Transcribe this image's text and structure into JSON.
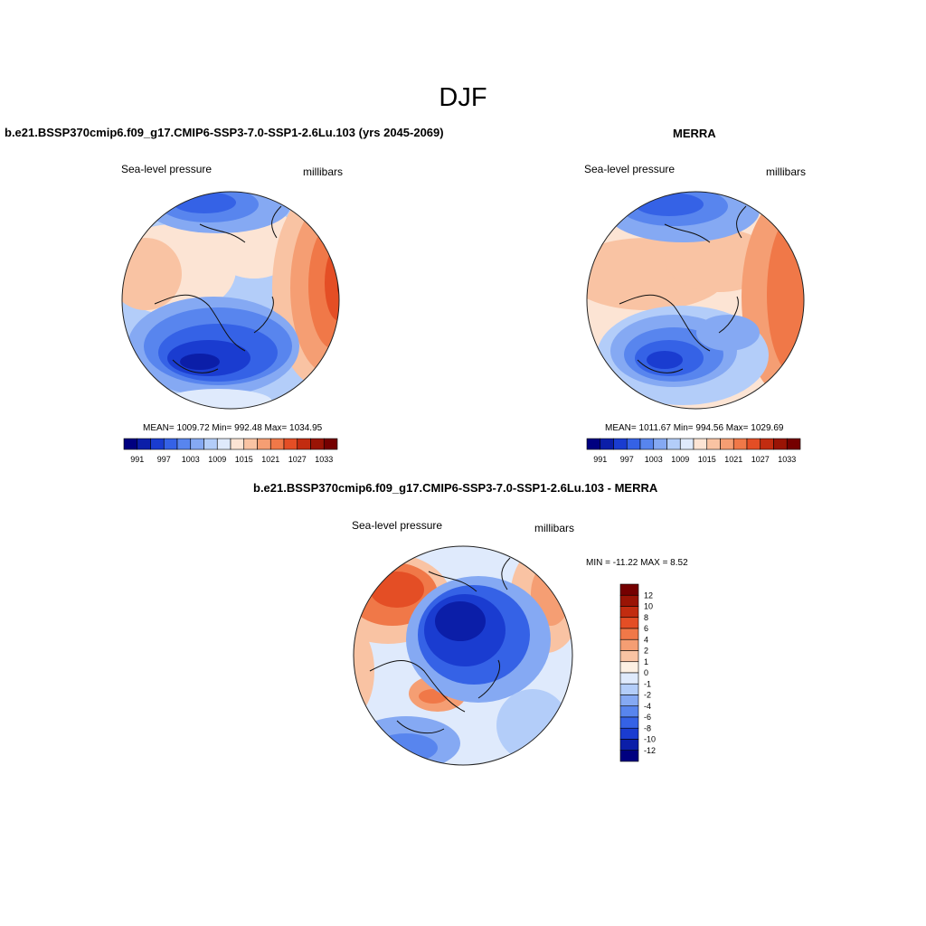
{
  "page": {
    "season": "DJF"
  },
  "colors": {
    "slp_scale": [
      "#000080",
      "#0b1ea8",
      "#1a3cd0",
      "#3562e6",
      "#5885ee",
      "#85a9f3",
      "#b3cdf9",
      "#dfeafc",
      "#fce4d4",
      "#f9c3a3",
      "#f59e73",
      "#f07848",
      "#e44e25",
      "#c22c10",
      "#9a1405",
      "#750000"
    ],
    "diff_scale": [
      "#000080",
      "#0b1ea8",
      "#1a3cd0",
      "#3562e6",
      "#5885ee",
      "#85a9f3",
      "#b3cdf9",
      "#dfeafc",
      "#fdf0e3",
      "#f9c3a3",
      "#f59e73",
      "#f07848",
      "#e44e25",
      "#c22c10",
      "#9a1405",
      "#750000"
    ],
    "coast": "#111111"
  },
  "panels": {
    "left": {
      "title": "b.e21.BSSP370cmip6.f09_g17.CMIP6-SSP3-7.0-SSP1-2.6Lu.103 (yrs 2045-2069)",
      "var_label": "Sea-level pressure",
      "units": "millibars",
      "stats": "MEAN= 1009.72  Min= 992.48  Max= 1034.95",
      "colorbar_ticks": [
        "991",
        "997",
        "1003",
        "1009",
        "1015",
        "1021",
        "1027",
        "1033"
      ]
    },
    "right": {
      "title": "MERRA",
      "var_label": "Sea-level pressure",
      "units": "millibars",
      "stats": "MEAN= 1011.67  Min= 994.56  Max= 1029.69",
      "colorbar_ticks": [
        "991",
        "997",
        "1003",
        "1009",
        "1015",
        "1021",
        "1027",
        "1033"
      ]
    },
    "diff": {
      "title": "b.e21.BSSP370cmip6.f09_g17.CMIP6-SSP3-7.0-SSP1-2.6Lu.103 - MERRA",
      "var_label": "Sea-level pressure",
      "units": "millibars",
      "stats": "MIN = -11.22 MAX =   8.52",
      "colorbar_ticks": [
        "12",
        "10",
        "8",
        "6",
        "4",
        "2",
        "1",
        "0",
        "-1",
        "-2",
        "-4",
        "-6",
        "-8",
        "-10",
        "-12"
      ]
    }
  }
}
